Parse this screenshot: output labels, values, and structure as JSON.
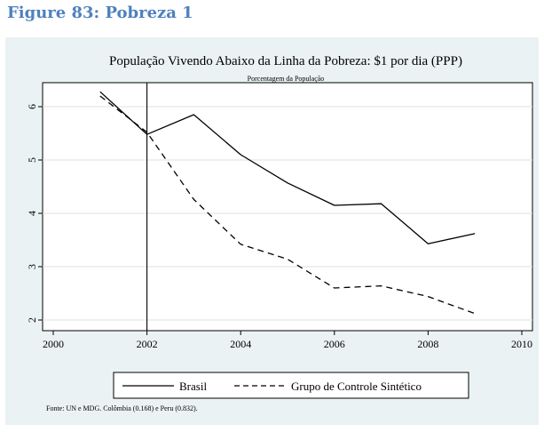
{
  "figure_caption": "Figure 83: Pobreza 1",
  "colors": {
    "caption": "#4f81bd",
    "frame_background": "#eaf2f3",
    "plot_background": "#ffffff",
    "gridline": "#e0e0e0",
    "line": "#000000"
  },
  "chart_data": {
    "type": "line",
    "title": "População Vivendo Abaixo da Linha da Pobreza: $1 por dia (PPP)",
    "subtitle": "Porcentagem da População",
    "xlabel": "",
    "ylabel": "",
    "xlim": [
      2000,
      2010
    ],
    "ylim": [
      1.8,
      6.45
    ],
    "x_ticks": [
      2000,
      2002,
      2004,
      2006,
      2008,
      2010
    ],
    "x_tick_labels": [
      "2000",
      "2002",
      "2004",
      "2006",
      "2008",
      "2010"
    ],
    "y_ticks": [
      2,
      3,
      4,
      5,
      6
    ],
    "y_tick_labels": [
      "2",
      "3",
      "4",
      "5",
      "6"
    ],
    "grid": true,
    "reference_line_x": 2002,
    "series": [
      {
        "name": "Brasil",
        "style": "solid",
        "x": [
          2001,
          2002,
          2003,
          2004,
          2005,
          2006,
          2007,
          2008,
          2009
        ],
        "y": [
          6.28,
          5.48,
          5.85,
          5.1,
          4.57,
          4.15,
          4.18,
          3.43,
          3.62
        ]
      },
      {
        "name": "Grupo de Controle Sintético",
        "style": "dashed",
        "x": [
          2001,
          2002,
          2003,
          2004,
          2005,
          2006,
          2007,
          2008,
          2009
        ],
        "y": [
          6.2,
          5.52,
          4.26,
          3.42,
          3.14,
          2.6,
          2.64,
          2.44,
          2.12
        ]
      }
    ],
    "legend_position": "bottom",
    "source_note": "Fonte: UN e MDG.  Colômbia (0.168) e  Peru (0.832)."
  }
}
